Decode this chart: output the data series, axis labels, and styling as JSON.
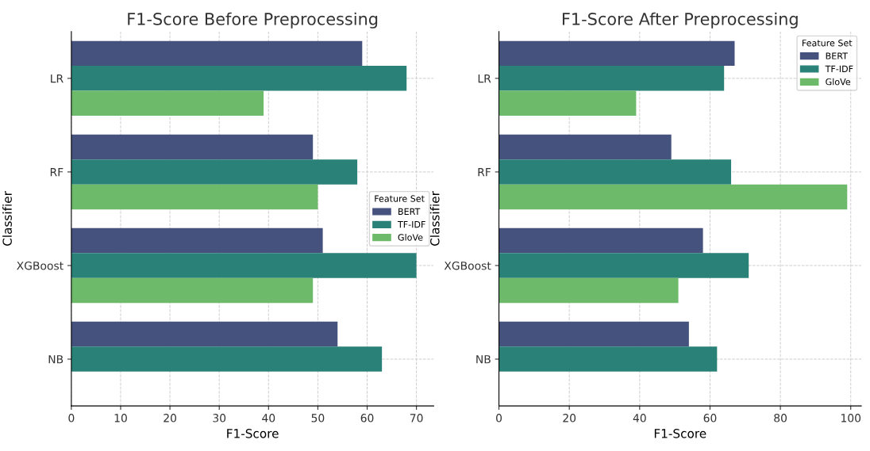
{
  "chart_data": [
    {
      "type": "bar",
      "orientation": "horizontal",
      "title": "F1-Score Before Preprocessing",
      "xlabel": "F1-Score",
      "ylabel": "Classifier",
      "legend_title": "Feature Set",
      "legend": "center right",
      "grid": true,
      "categories": [
        "LR",
        "RF",
        "XGBoost",
        "NB"
      ],
      "xlim": [
        0,
        73.5
      ],
      "xticks": [
        0,
        10,
        20,
        30,
        40,
        50,
        60,
        70
      ],
      "series": [
        {
          "name": "BERT",
          "color": "#46527e",
          "values": [
            59,
            49,
            51,
            54
          ]
        },
        {
          "name": "TF-IDF",
          "color": "#2a8178",
          "values": [
            68,
            58,
            70,
            63
          ]
        },
        {
          "name": "GloVe",
          "color": "#6cba6a",
          "values": [
            39,
            50,
            49,
            null
          ]
        }
      ]
    },
    {
      "type": "bar",
      "orientation": "horizontal",
      "title": "F1-Score After Preprocessing",
      "xlabel": "F1-Score",
      "ylabel": "Classifier",
      "legend_title": "Feature Set",
      "legend": "top right",
      "grid": true,
      "categories": [
        "LR",
        "RF",
        "XGBoost",
        "NB"
      ],
      "xlim": [
        0,
        103
      ],
      "xticks": [
        0,
        20,
        40,
        60,
        80,
        100
      ],
      "series": [
        {
          "name": "BERT",
          "color": "#46527e",
          "values": [
            67,
            49,
            58,
            54
          ]
        },
        {
          "name": "TF-IDF",
          "color": "#2a8178",
          "values": [
            64,
            66,
            71,
            62
          ]
        },
        {
          "name": "GloVe",
          "color": "#6cba6a",
          "values": [
            39,
            99,
            51,
            null
          ]
        }
      ]
    }
  ]
}
